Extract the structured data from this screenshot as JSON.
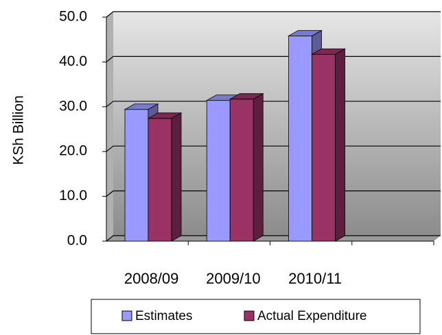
{
  "chart_data": {
    "type": "bar3d",
    "y_label": "KSh Billion",
    "categories": [
      "2008/09",
      "2009/10",
      "2010/11",
      null
    ],
    "series": [
      {
        "name": "Estimates",
        "color": "#9999ff",
        "values": [
          29.4,
          31.4,
          45.8,
          null
        ]
      },
      {
        "name": "Actual Expenditure",
        "color": "#993366",
        "values": [
          27.4,
          31.7,
          41.7,
          null
        ]
      }
    ],
    "ylim": [
      0,
      50
    ],
    "yticks": [
      {
        "value": 0,
        "label": "0.0"
      },
      {
        "value": 10,
        "label": "10.0"
      },
      {
        "value": 20,
        "label": "20.0"
      },
      {
        "value": 30,
        "label": "30.0"
      },
      {
        "value": 40,
        "label": "40.0"
      },
      {
        "value": 50,
        "label": "50.0"
      }
    ],
    "grid": true,
    "legend": "bottom"
  }
}
